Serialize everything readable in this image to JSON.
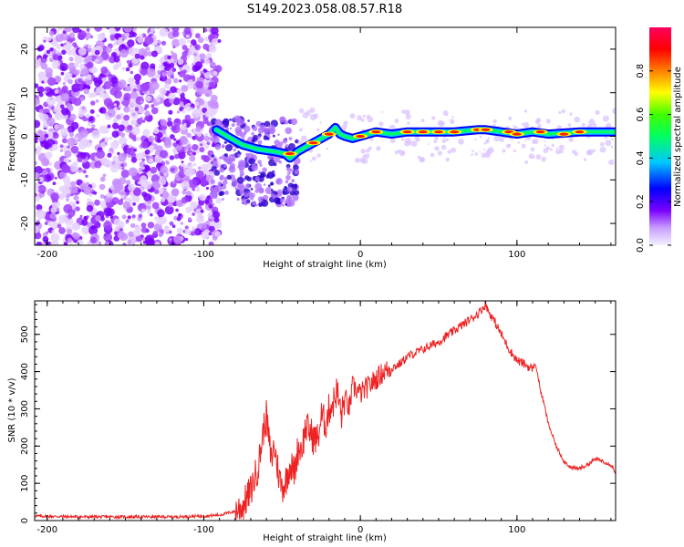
{
  "figure": {
    "title": "S149.2023.058.08.57.R18",
    "colors": {
      "background": "#ffffff",
      "axes": "#000000",
      "snr_line": "#ee2222",
      "noise_speckle": "#8a2be2"
    }
  },
  "chart_data": [
    {
      "type": "heatmap",
      "title": "",
      "xlabel": "Height of straight line (km)",
      "ylabel": "Frequency (Hz)",
      "xlim": [
        -208,
        163
      ],
      "ylim": [
        -25,
        25
      ],
      "xticks": [
        -200,
        -100,
        0,
        100
      ],
      "yticks": [
        -20,
        -10,
        0,
        10,
        20
      ],
      "colorbar": {
        "label": "Normalized spectral amplitude",
        "range": [
          0.0,
          1.0
        ],
        "ticks": [
          "0.0",
          "0.2",
          "0.4",
          "0.6",
          "0.8"
        ],
        "tick_values": [
          0.0,
          0.2,
          0.4,
          0.6,
          0.8
        ],
        "colormap": [
          "#f2f2ff",
          "#7a00ff",
          "#0000ff",
          "#00c8ff",
          "#00ff00",
          "#ffff00",
          "#ff8000",
          "#ff0000",
          "#ff0060"
        ]
      },
      "ridge": {
        "description_points_x": [
          -92,
          -85,
          -75,
          -65,
          -55,
          -48,
          -45,
          -40,
          -35,
          -30,
          -25,
          -20,
          -16,
          -13,
          -10,
          -5,
          0,
          5,
          10,
          20,
          30,
          40,
          60,
          75,
          80,
          90,
          100,
          110,
          120,
          140,
          163
        ],
        "description_points_y": [
          1.5,
          0,
          -2,
          -3,
          -3.5,
          -4,
          -5,
          -3.5,
          -2.5,
          -1.5,
          -0.5,
          0.5,
          2,
          0.5,
          0,
          -0.5,
          0,
          0.5,
          1,
          0.5,
          1,
          1,
          1,
          1.5,
          1.5,
          1,
          0.5,
          1,
          0.5,
          1,
          1
        ],
        "peak_amplitude_x": [
          -45,
          -30,
          -20,
          0,
          10,
          30,
          40,
          50,
          60,
          75,
          80,
          95,
          100,
          115,
          130,
          140
        ],
        "peak_amplitude_y": [
          -4,
          -1.5,
          0.5,
          0,
          1,
          1,
          1,
          1,
          1,
          1.5,
          1.5,
          1,
          0.5,
          1,
          0.5,
          1
        ]
      }
    },
    {
      "type": "line",
      "title": "",
      "xlabel": "Height of straight line (km)",
      "ylabel": "SNR (10 * v/v)",
      "xlim": [
        -208,
        163
      ],
      "ylim": [
        0,
        590
      ],
      "xticks": [
        -200,
        -100,
        0,
        100
      ],
      "yticks": [
        0,
        100,
        200,
        300,
        400,
        500
      ],
      "series": [
        {
          "x": [
            -208,
            -180,
            -150,
            -120,
            -100,
            -90,
            -80,
            -75,
            -70,
            -65,
            -62,
            -60,
            -57,
            -55,
            -52,
            -50,
            -48,
            -45,
            -42,
            -40,
            -37,
            -35,
            -32,
            -30,
            -27,
            -25,
            -22,
            -20,
            -17,
            -15,
            -12,
            -10,
            -7,
            -5,
            -2,
            0,
            5,
            10,
            15,
            20,
            25,
            30,
            35,
            40,
            50,
            60,
            70,
            75,
            78,
            80,
            82,
            85,
            90,
            95,
            100,
            105,
            108,
            110,
            112,
            115,
            118,
            120,
            125,
            130,
            135,
            140,
            145,
            150,
            155,
            160,
            163
          ],
          "values": [
            12,
            10,
            10,
            10,
            12,
            15,
            25,
            40,
            80,
            150,
            240,
            280,
            160,
            200,
            120,
            90,
            100,
            150,
            130,
            190,
            200,
            250,
            240,
            220,
            220,
            280,
            260,
            300,
            320,
            350,
            280,
            330,
            300,
            360,
            350,
            340,
            360,
            380,
            400,
            410,
            420,
            440,
            450,
            460,
            480,
            510,
            540,
            555,
            570,
            580,
            560,
            540,
            500,
            460,
            430,
            420,
            410,
            410,
            420,
            350,
            300,
            260,
            200,
            160,
            140,
            140,
            150,
            165,
            160,
            150,
            130
          ]
        }
      ]
    }
  ]
}
